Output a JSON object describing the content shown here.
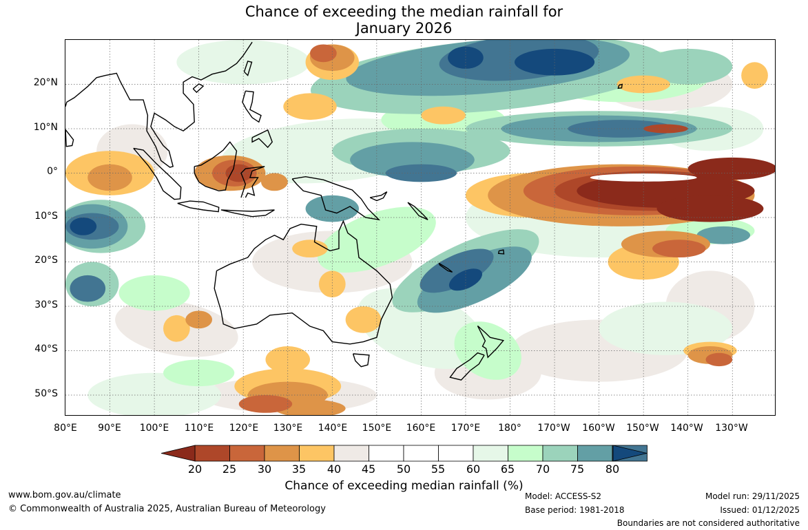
{
  "title": {
    "line1": "Chance of exceeding the median rainfall for",
    "line2": "January 2026"
  },
  "map": {
    "lon_range": [
      "80E",
      "235E"
    ],
    "lat_range": [
      "55S",
      "30N"
    ],
    "lat_labels": [
      "20°N",
      "10°N",
      "0°",
      "10°S",
      "20°S",
      "30°S",
      "40°S",
      "50°S"
    ],
    "lon_labels": [
      "80°E",
      "90°E",
      "100°E",
      "110°E",
      "120°E",
      "130°E",
      "140°E",
      "150°E",
      "160°E",
      "170°E",
      "180°",
      "170°W",
      "160°W",
      "150°W",
      "140°W",
      "130°W"
    ],
    "gridlines": "dotted every 10°",
    "colors": {
      "below_20": "#8b2a1b",
      "20_25": "#ae4729",
      "25_30": "#c9663a",
      "30_35": "#de9448",
      "35_40": "#fdc564",
      "40_45": "#efeae6",
      "45_55": "#ffffff",
      "55_60": "#e6f7e8",
      "60_65": "#c6fdcb",
      "65_70": "#9bd3bb",
      "70_75": "#639fa5",
      "75_80": "#427592",
      "above_80": "#14497c"
    }
  },
  "colorbar": {
    "labels": [
      "20",
      "25",
      "30",
      "35",
      "40",
      "45",
      "50",
      "55",
      "60",
      "65",
      "70",
      "75",
      "80"
    ],
    "bin_colors": [
      "#ae4729",
      "#c9663a",
      "#de9448",
      "#fdc564",
      "#efeae6",
      "#ffffff",
      "#ffffff",
      "#ffffff",
      "#e6f7e8",
      "#c6fdcb",
      "#9bd3bb",
      "#639fa5",
      "#427592"
    ],
    "low_end_color": "#8b2a1b",
    "high_end_color": "#14497c",
    "title": "Chance of exceeding median rainfall (%)"
  },
  "footer": {
    "website": "www.bom.gov.au/climate",
    "copyright": "© Commonwealth of Australia 2025, Australian Bureau of Meteorology",
    "model": "Model: ACCESS-S2",
    "base_period": "Base period: 1981-2018",
    "model_run": "Model run: 29/11/2025",
    "issued": "Issued: 01/12/2025",
    "disclaimer": "Boundaries are not considered authoritative"
  }
}
